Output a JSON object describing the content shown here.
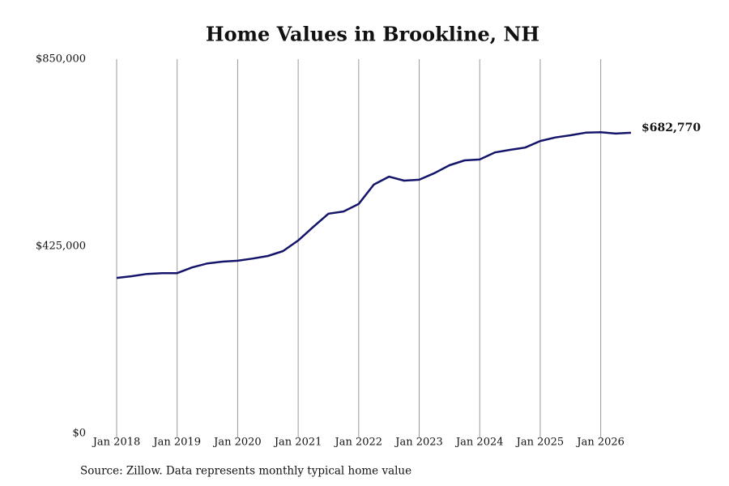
{
  "chart_data": {
    "type": "line",
    "title": "Home Values in Brookline, NH",
    "source": "Source: Zillow. Data represents monthly typical home value",
    "x": [
      "2018-01",
      "2018-04",
      "2018-07",
      "2018-10",
      "2019-01",
      "2019-04",
      "2019-07",
      "2019-10",
      "2020-01",
      "2020-04",
      "2020-07",
      "2020-10",
      "2021-01",
      "2021-04",
      "2021-07",
      "2021-10",
      "2022-01",
      "2022-04",
      "2022-07",
      "2022-10",
      "2023-01",
      "2023-04",
      "2023-07",
      "2023-10",
      "2024-01",
      "2024-04",
      "2024-07",
      "2024-10",
      "2025-01",
      "2025-04",
      "2025-07",
      "2025-10",
      "2026-01",
      "2026-04",
      "2026-07"
    ],
    "series": [
      {
        "name": "Brookline, NH",
        "color": "#14146b",
        "values": [
          353000,
          357000,
          362000,
          364000,
          364000,
          377000,
          386000,
          390000,
          392000,
          397000,
          403000,
          414000,
          438000,
          469000,
          499000,
          504000,
          521000,
          565000,
          583000,
          574000,
          576000,
          591000,
          609000,
          620000,
          622000,
          638000,
          644000,
          649000,
          664000,
          672000,
          677000,
          683000,
          684000,
          681000,
          682770
        ],
        "value_labels": [
          null,
          null,
          null,
          null,
          null,
          null,
          null,
          null,
          null,
          null,
          null,
          null,
          null,
          null,
          null,
          null,
          null,
          null,
          null,
          null,
          null,
          null,
          null,
          null,
          null,
          null,
          null,
          null,
          null,
          null,
          null,
          null,
          null,
          null,
          "$682,770"
        ]
      }
    ],
    "xlim": [
      "2018-01",
      "2026-07"
    ],
    "xticks": [
      {
        "value": "2018-01",
        "label": "Jan 2018"
      },
      {
        "value": "2019-01",
        "label": "Jan 2019"
      },
      {
        "value": "2020-01",
        "label": "Jan 2020"
      },
      {
        "value": "2021-01",
        "label": "Jan 2021"
      },
      {
        "value": "2022-01",
        "label": "Jan 2022"
      },
      {
        "value": "2023-01",
        "label": "Jan 2023"
      },
      {
        "value": "2024-01",
        "label": "Jan 2024"
      },
      {
        "value": "2025-01",
        "label": "Jan 2025"
      },
      {
        "value": "2026-01",
        "label": "Jan 2026"
      }
    ],
    "ylim": [
      0,
      850000
    ],
    "yticks": [
      {
        "value": 0,
        "label": "$0"
      },
      {
        "value": 425000,
        "label": "$425,000"
      },
      {
        "value": 850000,
        "label": "$850,000"
      }
    ],
    "grid": "x"
  }
}
